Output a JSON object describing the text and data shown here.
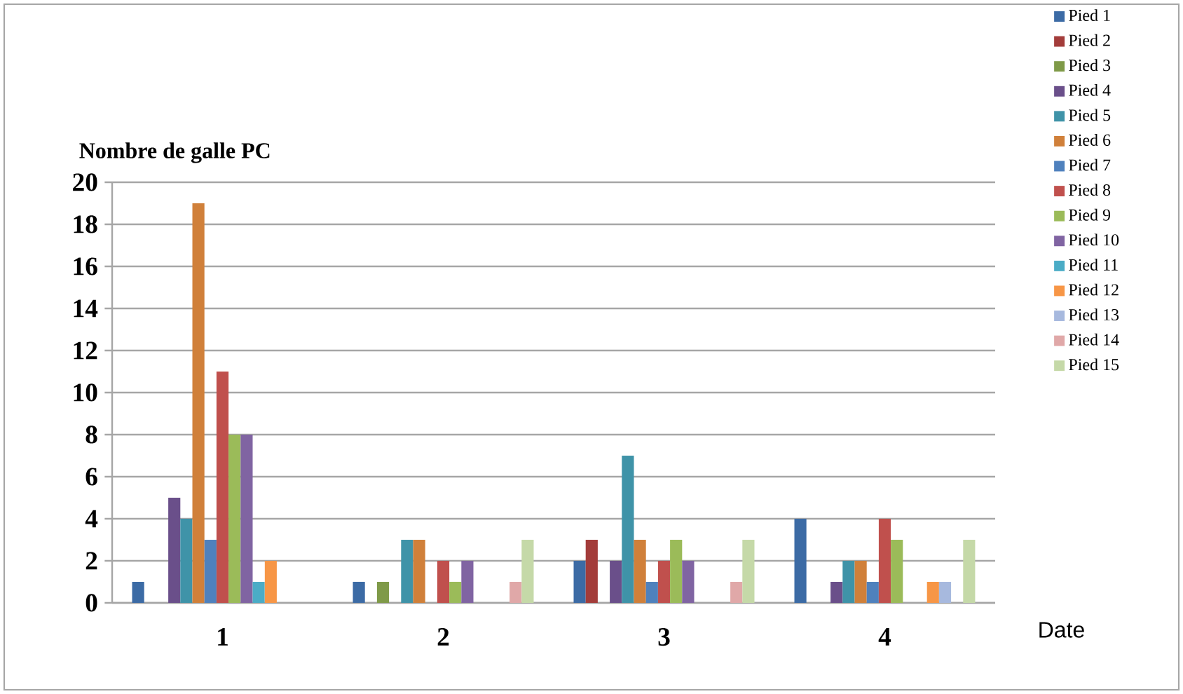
{
  "chart_data": {
    "type": "bar",
    "ylabel": "Nombre de galle PC",
    "xlabel": "Date",
    "categories": [
      "1",
      "2",
      "3",
      "4"
    ],
    "ylim": [
      0,
      20
    ],
    "yticks": [
      0,
      2,
      4,
      6,
      8,
      10,
      12,
      14,
      16,
      18,
      20
    ],
    "grid": "y",
    "legend": "right",
    "series": [
      {
        "name": "Pied 1",
        "color": "#3c6ba5",
        "values": [
          1,
          1,
          2,
          4
        ]
      },
      {
        "name": "Pied 2",
        "color": "#a33c3a",
        "values": [
          0,
          0,
          3,
          0
        ]
      },
      {
        "name": "Pied 3",
        "color": "#7f9a48",
        "values": [
          0,
          1,
          0,
          0
        ]
      },
      {
        "name": "Pied 4",
        "color": "#6a4f8a",
        "values": [
          5,
          0,
          2,
          1
        ]
      },
      {
        "name": "Pied 5",
        "color": "#3f93a8",
        "values": [
          4,
          3,
          7,
          2
        ]
      },
      {
        "name": "Pied 6",
        "color": "#d0803a",
        "values": [
          19,
          3,
          3,
          2
        ]
      },
      {
        "name": "Pied 7",
        "color": "#4f81bd",
        "values": [
          3,
          0,
          1,
          1
        ]
      },
      {
        "name": "Pied 8",
        "color": "#c0504d",
        "values": [
          11,
          2,
          2,
          4
        ]
      },
      {
        "name": "Pied 9",
        "color": "#9bbb59",
        "values": [
          8,
          1,
          3,
          3
        ]
      },
      {
        "name": "Pied 10",
        "color": "#8064a2",
        "values": [
          8,
          2,
          2,
          0
        ]
      },
      {
        "name": "Pied 11",
        "color": "#4bacc6",
        "values": [
          1,
          0,
          0,
          0
        ]
      },
      {
        "name": "Pied 12",
        "color": "#f79646",
        "values": [
          2,
          0,
          0,
          1
        ]
      },
      {
        "name": "Pied 13",
        "color": "#a7b9de",
        "values": [
          0,
          0,
          0,
          1
        ]
      },
      {
        "name": "Pied 14",
        "color": "#e0a8a8",
        "values": [
          0,
          1,
          1,
          0
        ]
      },
      {
        "name": "Pied 15",
        "color": "#c5d9a8",
        "values": [
          0,
          3,
          3,
          3
        ]
      }
    ]
  }
}
